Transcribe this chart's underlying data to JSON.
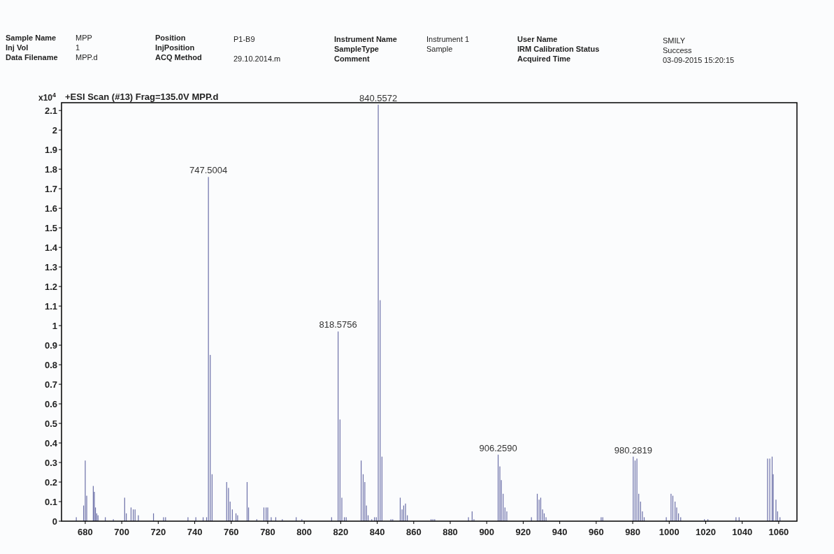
{
  "chart_data": {
    "type": "bar",
    "title": "+ESI Scan (#13) Frag=135.0V MPP.d",
    "ylabel": "x10$^{4}$",
    "color": "#6b6fa8",
    "x": [
      675.1,
      679.1,
      680,
      680.8,
      684.4,
      685,
      685.6,
      686.3,
      687,
      691,
      695.4,
      701.6,
      702.5,
      705.1,
      706.3,
      707.3,
      709.1,
      717.4,
      722.9,
      724,
      736.3,
      740.6,
      744.6,
      746.5,
      747.5004,
      748.5,
      749.5,
      757.5,
      758.5,
      759.4,
      760.6,
      762.6,
      763.5,
      768.7,
      769.5,
      774,
      777.9,
      779.1,
      780,
      781.9,
      784.4,
      788,
      795.6,
      798.7,
      815,
      818.5756,
      819.6,
      820.6,
      822,
      823,
      831.2,
      832.3,
      833.2,
      834.1,
      835,
      837,
      838.5,
      839.5,
      840.5572,
      841.6,
      842.6,
      847.5,
      848.5,
      852.6,
      853.6,
      854.5,
      855.5,
      856.5,
      869.5,
      870.5,
      871.5,
      890,
      892,
      893,
      906.259,
      907.2,
      908,
      909,
      910,
      911,
      924.5,
      927.7,
      928.7,
      929.6,
      930.6,
      931.5,
      932.5,
      962.7,
      963.6,
      980.2819,
      981.3,
      982.3,
      983.3,
      984.3,
      985.3,
      986.3,
      998.4,
      1001,
      1002,
      1003.2,
      1004.1,
      1005.1,
      1006.3,
      1019.3,
      1021.2,
      1036.6,
      1038.3,
      1053.9,
      1055.1,
      1056.4,
      1057,
      1058.5,
      1059.4,
      1060.7
    ],
    "values": [
      0.02,
      0.08,
      0.31,
      0.13,
      0.18,
      0.15,
      0.07,
      0.04,
      0.03,
      0.02,
      0.01,
      0.12,
      0.04,
      0.07,
      0.06,
      0.06,
      0.03,
      0.04,
      0.02,
      0.02,
      0.02,
      0.02,
      0.02,
      0.02,
      1.76,
      0.85,
      0.24,
      0.2,
      0.17,
      0.1,
      0.06,
      0.04,
      0.03,
      0.2,
      0.07,
      0.01,
      0.07,
      0.07,
      0.07,
      0.02,
      0.02,
      0.01,
      0.02,
      0.01,
      0.02,
      0.97,
      0.52,
      0.12,
      0.02,
      0.02,
      0.31,
      0.24,
      0.2,
      0.08,
      0.03,
      0.01,
      0.02,
      0.02,
      2.13,
      1.13,
      0.33,
      0.01,
      0.01,
      0.12,
      0.06,
      0.08,
      0.09,
      0.03,
      0.01,
      0.01,
      0.01,
      0.02,
      0.05,
      0.01,
      0.34,
      0.28,
      0.21,
      0.14,
      0.07,
      0.05,
      0.02,
      0.14,
      0.11,
      0.12,
      0.06,
      0.04,
      0.02,
      0.02,
      0.02,
      0.33,
      0.31,
      0.32,
      0.14,
      0.1,
      0.05,
      0.02,
      0.02,
      0.14,
      0.13,
      0.1,
      0.07,
      0.04,
      0.02,
      0.01,
      0.01,
      0.02,
      0.02,
      0.32,
      0.32,
      0.33,
      0.24,
      0.11,
      0.05,
      0.02
    ],
    "xlim": [
      667,
      1070
    ],
    "xticks": [
      680,
      700,
      720,
      740,
      760,
      780,
      800,
      820,
      840,
      860,
      880,
      900,
      920,
      940,
      960,
      980,
      1000,
      1020,
      1040,
      1060
    ],
    "ylim": [
      0,
      2.14
    ],
    "yticks": [
      0,
      0.1,
      0.2,
      0.3,
      0.4,
      0.5,
      0.6,
      0.7,
      0.8,
      0.9,
      1,
      1.1,
      1.2,
      1.3,
      1.4,
      1.5,
      1.6,
      1.7,
      1.8,
      1.9,
      2,
      2.1
    ],
    "grid": false,
    "annotations": [
      {
        "text": "747.5004",
        "x": 747.5004,
        "y": 1.76
      },
      {
        "text": "818.5756",
        "x": 818.5756,
        "y": 0.97
      },
      {
        "text": "840.5572",
        "x": 840.5572,
        "y": 2.13
      },
      {
        "text": "906.2590",
        "x": 906.259,
        "y": 0.34
      },
      {
        "text": "980.2819",
        "x": 980.2819,
        "y": 0.33
      },
      "Sample Name",
      "MPP",
      "Inj Vol",
      "1",
      "Data Filename",
      "MPP.d",
      "Position",
      "P1-B9",
      "InjPosition",
      "ACQ Method",
      "29.10.2014.m",
      "Instrument Name",
      "Instrument 1",
      "SampleType",
      "Sample",
      "Comment",
      "User Name",
      "SMILY",
      "IRM Calibration Status",
      "Success",
      "Acquired Time",
      "03-09-2015 15:20:15"
    ]
  }
}
